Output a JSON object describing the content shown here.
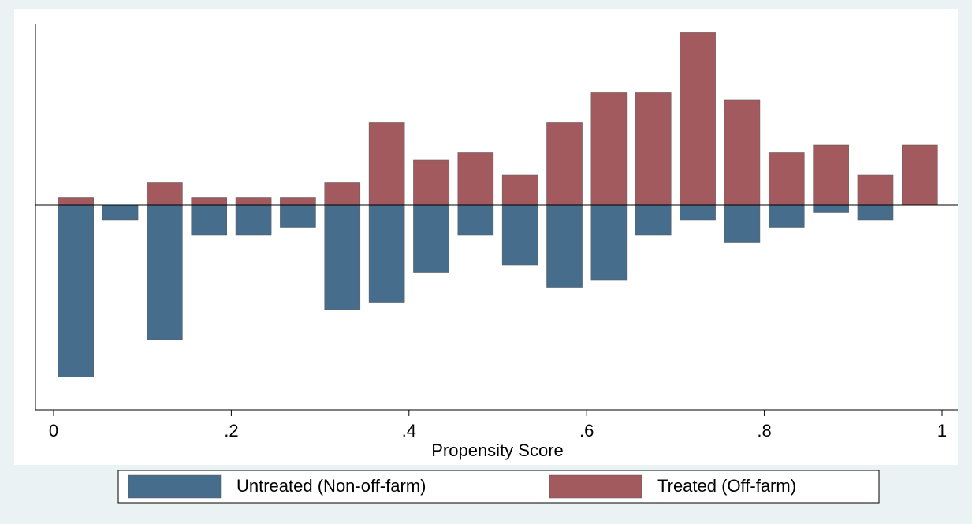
{
  "chart_data": {
    "type": "mirrored-histogram",
    "x_label": "Propensity Score",
    "bins": [
      0,
      0.05,
      0.1,
      0.15,
      0.2,
      0.25,
      0.3,
      0.35,
      0.4,
      0.45,
      0.5,
      0.55,
      0.6,
      0.65,
      0.7,
      0.75,
      0.8,
      0.85,
      0.9,
      0.95,
      1
    ],
    "series": [
      {
        "name": "Untreated (Non-off-farm)",
        "color": "#476d8c",
        "values": [
          -23,
          -2,
          -18,
          -4,
          -4,
          -3,
          -14,
          -13,
          -9,
          -4,
          -8,
          -11,
          -10,
          -4,
          -2,
          -5,
          -3,
          -1,
          -2,
          0
        ]
      },
      {
        "name": "Treated (Off-farm)",
        "color": "#a35a5e",
        "values": [
          1,
          0,
          3,
          1,
          1,
          1,
          3,
          11,
          6,
          7,
          4,
          11,
          15,
          15,
          23,
          14,
          7,
          8,
          4,
          8
        ]
      }
    ],
    "xlim": [
      0,
      1
    ],
    "xticks": [
      0,
      {
        "value": 0.2,
        "label": ".2"
      },
      {
        "value": 0.4,
        "label": ".4"
      },
      {
        "value": 0.6,
        "label": ".6"
      },
      {
        "value": 0.8,
        "label": ".8"
      },
      1
    ],
    "ylim": [
      -24.2,
      24.2
    ],
    "legend": "bottom"
  }
}
